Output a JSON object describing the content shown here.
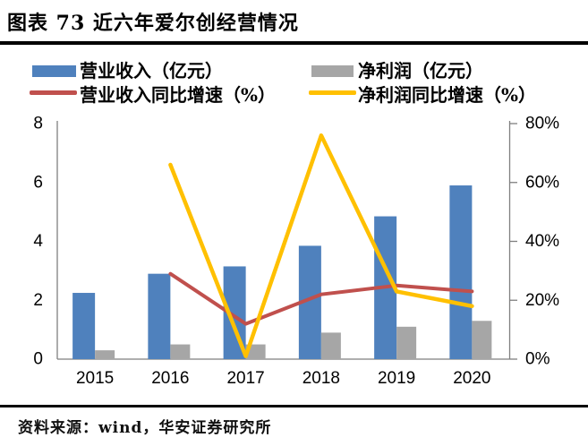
{
  "figure": {
    "title": "图表 73 近六年爱尔创经营情况",
    "source": "资料来源：wind，华安证券研究所"
  },
  "chart_data": {
    "type": "bar",
    "subtype": "bar-line-combo",
    "title": "近六年爱尔创经营情况",
    "categories": [
      "2015",
      "2016",
      "2017",
      "2018",
      "2019",
      "2020"
    ],
    "bar_series": [
      {
        "name": "营业收入（亿元）",
        "axis": "left",
        "color": "#4F81BD",
        "values": [
          2.25,
          2.9,
          3.15,
          3.85,
          4.85,
          5.9
        ]
      },
      {
        "name": "净利润（亿元）",
        "axis": "left",
        "color": "#A6A6A6",
        "values": [
          0.3,
          0.5,
          0.5,
          0.9,
          1.1,
          1.3
        ]
      }
    ],
    "line_series": [
      {
        "name": "营业收入同比增速（%）",
        "axis": "right",
        "color": "#C0504D",
        "values": [
          null,
          29,
          12,
          22,
          25,
          23
        ]
      },
      {
        "name": "净利润同比增速（%）",
        "axis": "right",
        "color": "#FFC000",
        "values": [
          null,
          66,
          1,
          76,
          23,
          18
        ]
      }
    ],
    "left_axis": {
      "label": "亿元",
      "min": 0,
      "max": 8,
      "ticks": [
        "0",
        "2",
        "4",
        "6",
        "8"
      ]
    },
    "right_axis": {
      "label": "%",
      "min": 0,
      "max": 80,
      "ticks": [
        "0%",
        "20%",
        "40%",
        "60%",
        "80%"
      ]
    },
    "legend_position": "top",
    "grid": false,
    "axis_color": "#7F7F7F"
  }
}
